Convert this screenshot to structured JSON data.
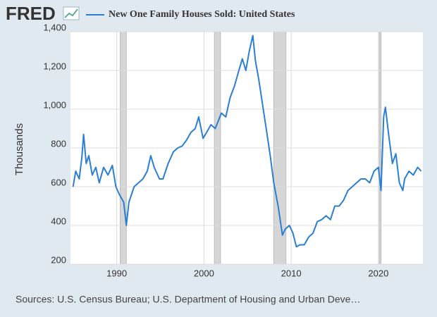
{
  "logo": "FRED",
  "chart_data": {
    "type": "line",
    "title": "New One Family Houses Sold: United States",
    "y_label": "Thousands",
    "source": "Sources: U.S. Census Bureau; U.S. Department of Housing and Urban Deve…",
    "xlim": [
      1984.7,
      2025.1
    ],
    "xticks": [
      1990,
      2000,
      2010,
      2020
    ],
    "ylim": [
      200,
      1400
    ],
    "yticks": [
      200,
      400,
      600,
      800,
      {
        "value": 1000,
        "label": "1,000"
      },
      {
        "value": 1200,
        "label": "1,200"
      },
      {
        "value": 1400,
        "label": "1,400"
      }
    ],
    "grid": true,
    "recessions": [
      [
        1990.4,
        1991.1
      ],
      [
        2001.2,
        2001.9
      ],
      [
        2008.0,
        2009.4
      ],
      [
        2020.1,
        2020.3
      ]
    ],
    "series": [
      {
        "name": "New One Family Houses Sold: United States",
        "color": "#2a7fd4",
        "x": [
          1985.0,
          1985.3,
          1985.7,
          1986.0,
          1986.2,
          1986.5,
          1986.8,
          1987.2,
          1987.6,
          1988.0,
          1988.5,
          1989.0,
          1989.5,
          1989.9,
          1990.3,
          1990.8,
          1991.0,
          1991.1,
          1991.4,
          1992.0,
          1992.5,
          1993.0,
          1993.5,
          1993.9,
          1994.3,
          1994.9,
          1995.3,
          1995.9,
          1996.5,
          1997.0,
          1997.5,
          1998.0,
          1998.5,
          1999.0,
          1999.4,
          1999.9,
          2000.3,
          2000.8,
          2001.3,
          2002.0,
          2002.5,
          2003.0,
          2003.5,
          2004.0,
          2004.4,
          2004.8,
          2005.2,
          2005.6,
          2005.9,
          2006.3,
          2006.8,
          2007.2,
          2007.6,
          2008.0,
          2008.5,
          2009.0,
          2009.3,
          2009.8,
          2010.2,
          2010.6,
          2011.0,
          2011.5,
          2012.0,
          2012.5,
          2013.0,
          2013.5,
          2014.0,
          2014.5,
          2015.0,
          2015.5,
          2016.0,
          2016.5,
          2017.0,
          2017.5,
          2018.0,
          2018.5,
          2019.0,
          2019.5,
          2020.0,
          2020.3,
          2020.6,
          2020.8,
          2021.2,
          2021.6,
          2022.0,
          2022.4,
          2022.8,
          2023.0,
          2023.5,
          2024.0,
          2024.5,
          2024.9
        ],
        "values": [
          600,
          680,
          640,
          750,
          870,
          720,
          760,
          660,
          700,
          620,
          700,
          660,
          710,
          600,
          560,
          520,
          440,
          400,
          520,
          600,
          620,
          640,
          680,
          760,
          700,
          640,
          640,
          720,
          780,
          800,
          810,
          840,
          880,
          900,
          960,
          850,
          880,
          920,
          900,
          980,
          960,
          1060,
          1120,
          1200,
          1260,
          1200,
          1300,
          1380,
          1250,
          1150,
          1000,
          880,
          760,
          620,
          500,
          350,
          380,
          400,
          360,
          290,
          300,
          300,
          340,
          360,
          420,
          430,
          450,
          430,
          500,
          500,
          530,
          580,
          600,
          620,
          640,
          640,
          620,
          680,
          700,
          580,
          960,
          1010,
          860,
          720,
          770,
          620,
          580,
          640,
          680,
          660,
          700,
          680
        ]
      }
    ]
  }
}
